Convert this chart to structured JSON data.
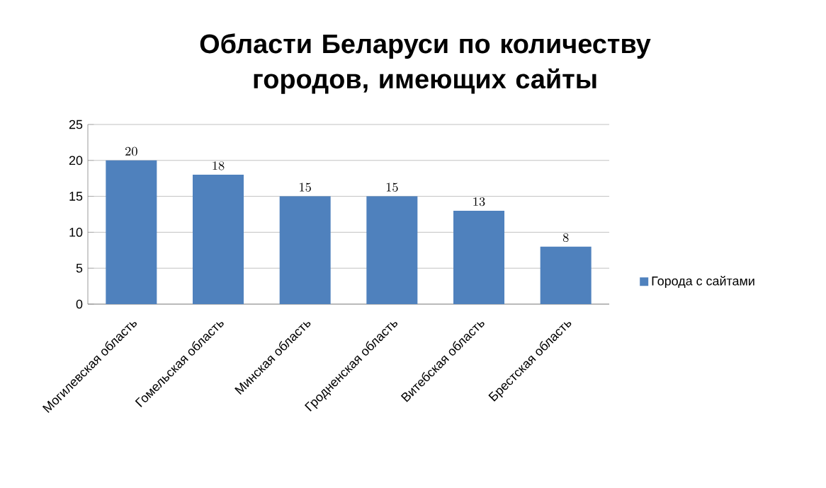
{
  "chart_data": {
    "type": "bar",
    "title": "Области Беларуси по количеству городов, имеющих сайты",
    "categories": [
      "Могилевская область",
      "Гомельская область",
      "Минская область",
      "Гродненская область",
      "Витебская область",
      "Брестская область"
    ],
    "series": [
      {
        "name": "Города с сайтами",
        "color": "#4f81bd",
        "values": [
          20,
          18,
          15,
          15,
          13,
          8
        ]
      }
    ],
    "ylim": [
      0,
      25
    ],
    "yticks": [
      0,
      5,
      10,
      15,
      20,
      25
    ],
    "grid": "y",
    "legend": "right",
    "data_labels": true
  }
}
